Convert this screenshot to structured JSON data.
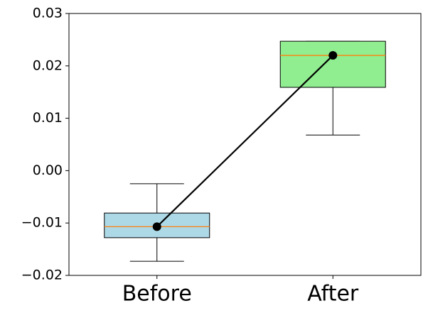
{
  "chart_data": {
    "type": "box",
    "categories": [
      "Before",
      "After"
    ],
    "boxes": [
      {
        "whislo": -0.0173,
        "q1": -0.0128,
        "med": -0.0107,
        "q3": -0.0081,
        "whishi": -0.0025,
        "color": "#add8e6"
      },
      {
        "whislo": 0.0068,
        "q1": 0.0159,
        "med": 0.022,
        "q3": 0.0247,
        "whishi": 0.0247,
        "color": "#90ee90"
      }
    ],
    "median_color": "#ff7f0e",
    "connect_color": "#000000",
    "ylim": [
      -0.02,
      0.03
    ],
    "yticks": [
      {
        "value": -0.02,
        "label": "−0.02"
      },
      {
        "value": -0.01,
        "label": "−0.01"
      },
      {
        "value": 0,
        "label": "0.00"
      },
      0.01,
      0.02,
      0.03
    ]
  }
}
